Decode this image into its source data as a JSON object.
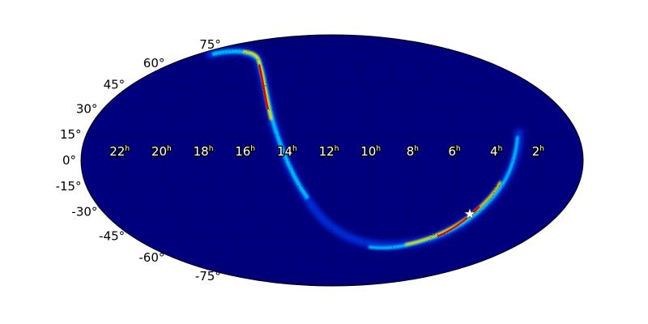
{
  "map": {
    "projection": "mollweide",
    "background_color": "#00007f",
    "colormap": "jet",
    "ra_labels": [
      {
        "hours": 22,
        "text": "22",
        "sup": "h"
      },
      {
        "hours": 20,
        "text": "20",
        "sup": "h"
      },
      {
        "hours": 18,
        "text": "18",
        "sup": "h"
      },
      {
        "hours": 16,
        "text": "16",
        "sup": "h"
      },
      {
        "hours": 14,
        "text": "14",
        "sup": "h"
      },
      {
        "hours": 12,
        "text": "12",
        "sup": "h"
      },
      {
        "hours": 10,
        "text": "10",
        "sup": "h"
      },
      {
        "hours": 8,
        "text": "8",
        "sup": "h"
      },
      {
        "hours": 6,
        "text": "6",
        "sup": "h"
      },
      {
        "hours": 4,
        "text": "4",
        "sup": "h"
      },
      {
        "hours": 2,
        "text": "2",
        "sup": "h"
      }
    ],
    "dec_labels": [
      {
        "deg": 75,
        "text": "75°"
      },
      {
        "deg": 60,
        "text": "60°"
      },
      {
        "deg": 45,
        "text": "45°"
      },
      {
        "deg": 30,
        "text": "30°"
      },
      {
        "deg": 15,
        "text": "15°"
      },
      {
        "deg": 0,
        "text": "0°"
      },
      {
        "deg": -15,
        "text": "-15°"
      },
      {
        "deg": -30,
        "text": "-30°"
      },
      {
        "deg": -45,
        "text": "-45°"
      },
      {
        "deg": -60,
        "text": "-60°"
      },
      {
        "deg": -75,
        "text": "-75°"
      }
    ],
    "marker": {
      "icon": "star-icon",
      "color": "#ffffff"
    }
  }
}
